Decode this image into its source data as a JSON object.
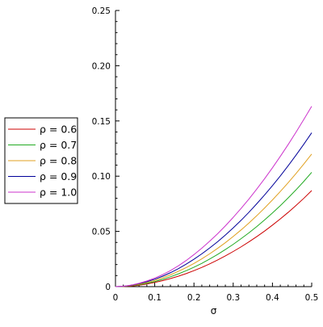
{
  "chart_data": {
    "type": "line",
    "title": "",
    "xlabel": "σ",
    "ylabel": "",
    "xlim": [
      0,
      0.5
    ],
    "ylim": [
      0,
      0.25
    ],
    "x_ticks": [
      0,
      0.1,
      0.2,
      0.3,
      0.4,
      0.5
    ],
    "x_tick_labels": [
      "0",
      "0.1",
      "0.2",
      "0.3",
      "0.4",
      "0.5"
    ],
    "y_ticks": [
      0,
      0.05,
      0.1,
      0.15,
      0.2,
      0.25
    ],
    "y_tick_labels": [
      "0",
      "0.05",
      "0.10",
      "0.15",
      "0.20",
      "0.25"
    ],
    "grid": false,
    "legend_position": "left",
    "x": [
      0,
      0.02,
      0.04,
      0.06,
      0.08,
      0.1,
      0.12,
      0.14,
      0.16,
      0.18,
      0.2,
      0.22,
      0.24,
      0.26,
      0.28,
      0.3,
      0.32,
      0.34,
      0.36,
      0.38,
      0.4,
      0.42,
      0.44,
      0.46,
      0.48,
      0.5
    ],
    "series": [
      {
        "name": "ρ = 0.6",
        "color": "#cc0000",
        "values": [
          0,
          0.0001,
          0.0005,
          0.0013,
          0.0024,
          0.0038,
          0.0054,
          0.0073,
          0.0094,
          0.0118,
          0.0145,
          0.0174,
          0.0206,
          0.0241,
          0.0278,
          0.0318,
          0.036,
          0.0405,
          0.0453,
          0.0503,
          0.0557,
          0.0613,
          0.0672,
          0.0735,
          0.08,
          0.087
        ]
      },
      {
        "name": "ρ = 0.7",
        "color": "#22aa22",
        "values": [
          0,
          0.0002,
          0.0008,
          0.0017,
          0.003,
          0.0046,
          0.0066,
          0.0089,
          0.0115,
          0.0144,
          0.0176,
          0.0211,
          0.025,
          0.0291,
          0.0336,
          0.0383,
          0.0434,
          0.0487,
          0.0544,
          0.0604,
          0.0667,
          0.0733,
          0.0803,
          0.0876,
          0.0953,
          0.1035
        ]
      },
      {
        "name": "ρ = 0.8",
        "color": "#e0a020",
        "values": [
          0,
          0.0002,
          0.001,
          0.0022,
          0.0037,
          0.0056,
          0.008,
          0.0107,
          0.0138,
          0.0172,
          0.021,
          0.0252,
          0.0297,
          0.0346,
          0.0398,
          0.0454,
          0.0513,
          0.0576,
          0.0642,
          0.0712,
          0.0785,
          0.0861,
          0.0941,
          0.1024,
          0.1111,
          0.12
        ]
      },
      {
        "name": "ρ = 0.9",
        "color": "#000099",
        "values": [
          0,
          0.0003,
          0.0012,
          0.0027,
          0.0045,
          0.0067,
          0.0094,
          0.0126,
          0.0162,
          0.0203,
          0.0248,
          0.0297,
          0.035,
          0.0406,
          0.0467,
          0.0532,
          0.06,
          0.0673,
          0.075,
          0.083,
          0.0914,
          0.1002,
          0.1094,
          0.119,
          0.129,
          0.1393
        ]
      },
      {
        "name": "ρ = 1.0",
        "color": "#cc33cc",
        "values": [
          0,
          0.0004,
          0.0014,
          0.003,
          0.0051,
          0.0077,
          0.0108,
          0.0145,
          0.0188,
          0.0236,
          0.029,
          0.0348,
          0.0411,
          0.0478,
          0.055,
          0.0627,
          0.0708,
          0.0793,
          0.0883,
          0.0977,
          0.1076,
          0.1179,
          0.1286,
          0.1398,
          0.1514,
          0.1633
        ]
      }
    ]
  }
}
